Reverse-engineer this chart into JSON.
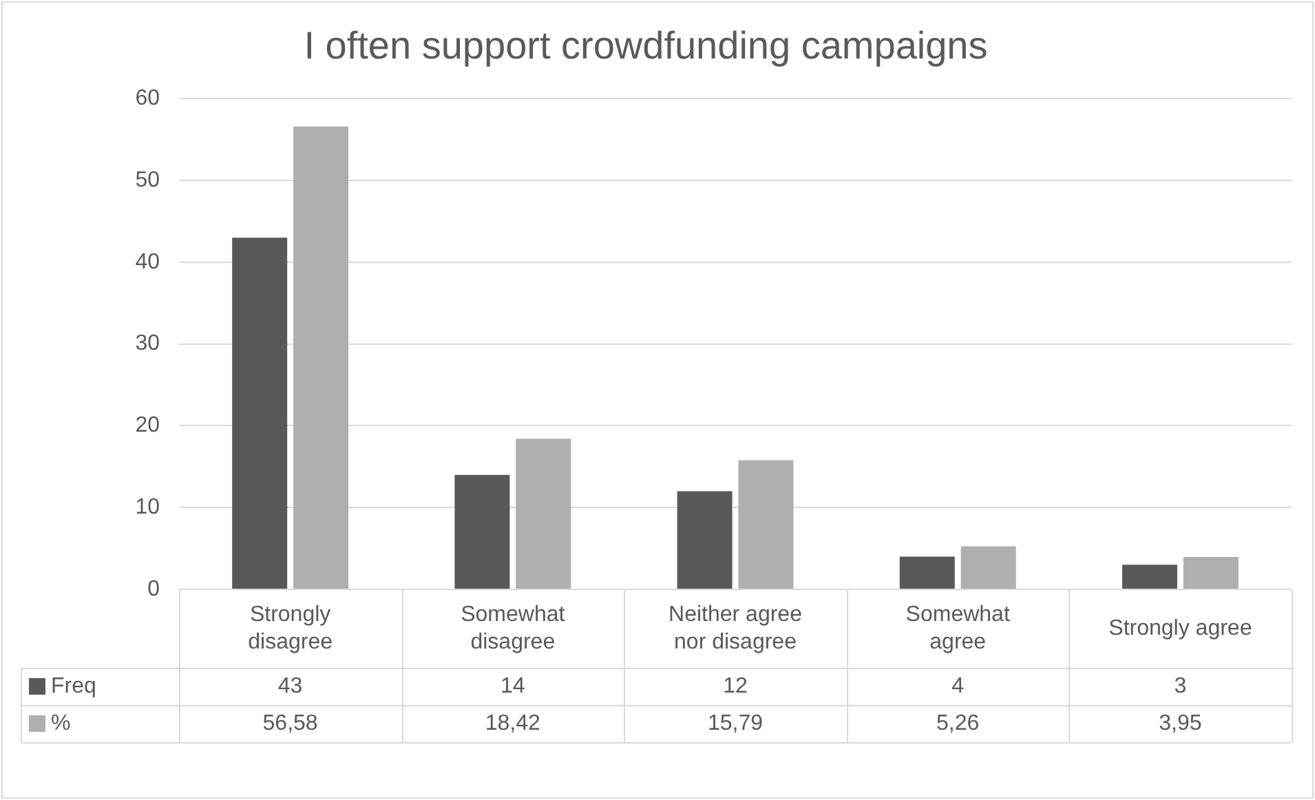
{
  "chart_data": {
    "type": "bar",
    "title": "I often support crowdfunding campaigns",
    "categories": [
      "Strongly disagree",
      "Somewhat disagree",
      "Neither agree nor disagree",
      "Somewhat agree",
      "Strongly agree"
    ],
    "series": [
      {
        "name": "Freq",
        "color": "#595959",
        "values": [
          43,
          14,
          12,
          4,
          3
        ],
        "value_labels": [
          "43",
          "14",
          "12",
          "4",
          "3"
        ]
      },
      {
        "name": "%",
        "color": "#afafaf",
        "values": [
          56.58,
          18.42,
          15.79,
          5.26,
          3.95
        ],
        "value_labels": [
          "56,58",
          "18,42",
          "15,79",
          "5,26",
          "3,95"
        ]
      }
    ],
    "ylim": [
      0,
      60
    ],
    "yticks": [
      0,
      10,
      20,
      30,
      40,
      50,
      60
    ],
    "grid": "y",
    "legend": "bottom"
  }
}
